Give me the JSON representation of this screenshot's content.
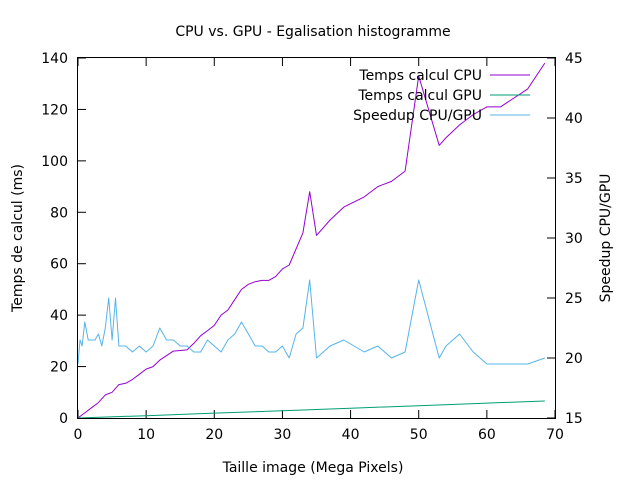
{
  "chart_data": {
    "type": "line",
    "title": "CPU vs. GPU - Egalisation histogramme",
    "xlabel": "Taille image (Mega Pixels)",
    "ylabel": "Temps de calcul (ms)",
    "y2label": "Speedup CPU/GPU",
    "xlim": [
      0,
      70
    ],
    "ylim": [
      0,
      140
    ],
    "y2lim": [
      15,
      45
    ],
    "x_ticks": [
      0,
      10,
      20,
      30,
      40,
      50,
      60,
      70
    ],
    "y_ticks": [
      0,
      20,
      40,
      60,
      80,
      100,
      120,
      140
    ],
    "y2_ticks": [
      15,
      20,
      25,
      30,
      35,
      40,
      45
    ],
    "grid": false,
    "legend_position": "top-right",
    "series": [
      {
        "name": "Temps calcul CPU",
        "axis": "y1",
        "color": "#9400d3",
        "x": [
          0,
          0.5,
          1,
          2,
          3,
          4,
          5,
          6,
          7,
          8,
          9,
          10,
          11,
          12,
          14,
          16,
          17,
          18,
          19,
          20,
          21,
          22,
          23,
          24,
          25,
          26,
          27,
          28,
          29,
          30,
          31,
          33,
          34,
          35,
          37,
          39,
          42,
          44,
          46,
          48,
          50,
          53,
          54,
          56,
          58,
          60,
          62,
          66,
          68.5
        ],
        "y": [
          0,
          1,
          2,
          4,
          6,
          9,
          10,
          13,
          13.5,
          15,
          17,
          19,
          20,
          22.5,
          26,
          26.5,
          29,
          32,
          34,
          36,
          40,
          42,
          46,
          50,
          52,
          53,
          53.5,
          53.5,
          55,
          58,
          59.5,
          72,
          88,
          71,
          77,
          82,
          86,
          90,
          92,
          96,
          133,
          106,
          109,
          114,
          118,
          121,
          121,
          128,
          138
        ]
      },
      {
        "name": "Temps calcul GPU",
        "axis": "y1",
        "color": "#009e73",
        "x": [
          0,
          10,
          20,
          30,
          40,
          50,
          60,
          68.5
        ],
        "y": [
          0,
          0.9,
          1.9,
          2.8,
          3.8,
          4.8,
          5.8,
          6.6
        ]
      },
      {
        "name": "Speedup CPU/GPU",
        "axis": "y2",
        "color": "#56b4e9",
        "x": [
          0,
          0.3,
          0.6,
          1,
          1.5,
          2,
          2.5,
          3,
          3.5,
          4,
          4.5,
          5,
          5.5,
          6,
          7,
          8,
          9,
          10,
          11,
          12,
          13,
          14,
          15,
          16,
          17,
          18,
          19,
          20,
          21,
          22,
          23,
          24,
          25,
          26,
          27,
          28,
          29,
          30,
          31,
          32,
          33,
          34,
          35,
          37,
          39,
          42,
          44,
          46,
          48,
          50,
          53,
          54,
          56,
          58,
          60,
          62,
          66,
          68.5
        ],
        "y": [
          19.5,
          21.5,
          21,
          23,
          21.5,
          21.5,
          21.5,
          22,
          21,
          22.5,
          25,
          21.5,
          25,
          21,
          21,
          20.5,
          21,
          20.5,
          21,
          22.5,
          21.5,
          21.5,
          21,
          21,
          20.5,
          20.5,
          21.5,
          21,
          20.5,
          21.5,
          22,
          23,
          22,
          21,
          21,
          20.5,
          20.5,
          21,
          20,
          22,
          22.5,
          26.5,
          20,
          21,
          21.5,
          20.5,
          21,
          20,
          20.5,
          26.5,
          20,
          21,
          22,
          20.5,
          19.5,
          19.5,
          19.5,
          20
        ]
      }
    ]
  }
}
